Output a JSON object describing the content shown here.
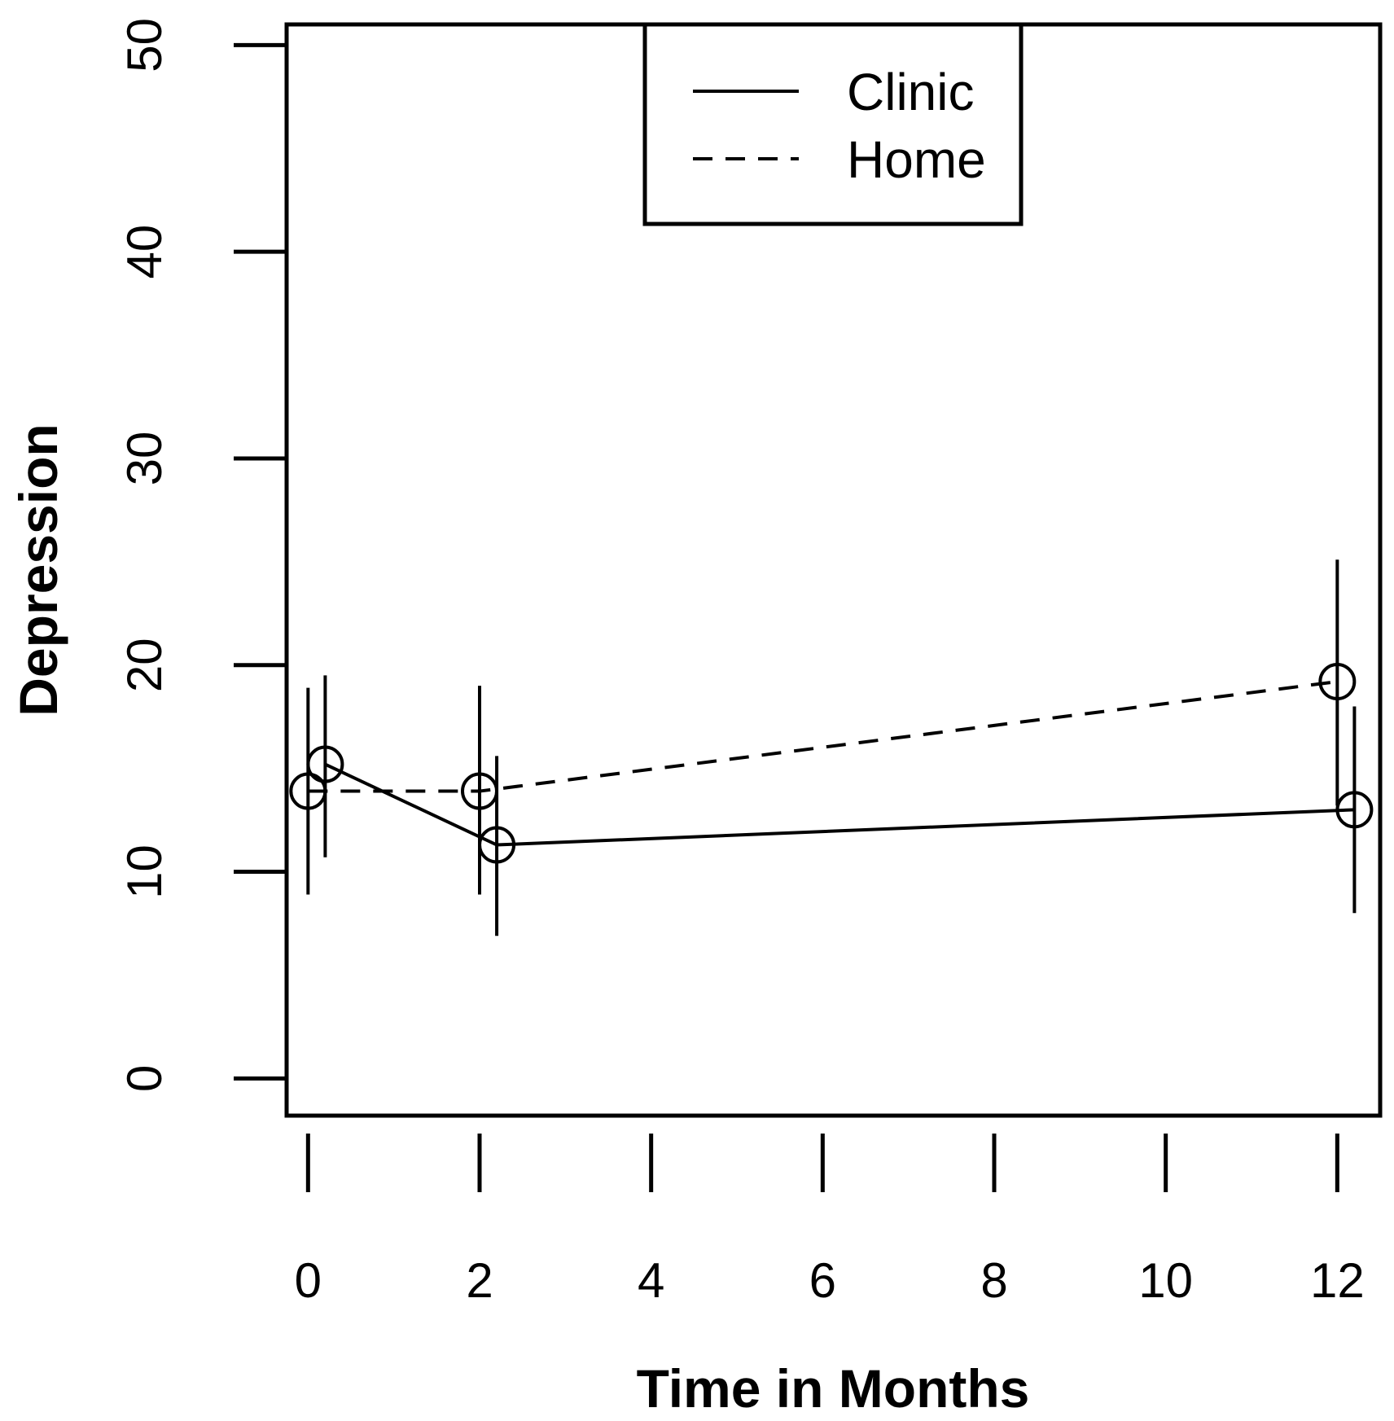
{
  "chart_data": {
    "type": "line",
    "title": "",
    "xlabel": "Time in Months",
    "ylabel": "Depression",
    "xlim": [
      -0.25,
      12.5
    ],
    "ylim": [
      -1.8,
      51
    ],
    "x_ticks": [
      0,
      2,
      4,
      6,
      8,
      10,
      12
    ],
    "x_tick_labels": [
      "0",
      "2",
      "4",
      "6",
      "8",
      "10",
      "12"
    ],
    "y_ticks": [
      0,
      10,
      20,
      30,
      40,
      50
    ],
    "y_tick_labels": [
      "0",
      "10",
      "20",
      "30",
      "40",
      "50"
    ],
    "grid": false,
    "legend_position": "top-center",
    "series": [
      {
        "name": "Clinic",
        "line_style": "solid",
        "marker": "open-circle",
        "points": [
          {
            "x": 0.2,
            "y": 15.2,
            "lower": 10.7,
            "upper": 19.5
          },
          {
            "x": 2.2,
            "y": 11.3,
            "lower": 6.9,
            "upper": 15.6
          },
          {
            "x": 12.2,
            "y": 13.0,
            "lower": 8.0,
            "upper": 18.0
          }
        ]
      },
      {
        "name": "Home",
        "line_style": "dashed",
        "marker": "open-circle",
        "points": [
          {
            "x": 0.0,
            "y": 13.9,
            "lower": 8.9,
            "upper": 18.9
          },
          {
            "x": 2.0,
            "y": 13.9,
            "lower": 8.9,
            "upper": 19.0
          },
          {
            "x": 12.0,
            "y": 19.2,
            "lower": 13.2,
            "upper": 25.1
          }
        ]
      }
    ]
  }
}
